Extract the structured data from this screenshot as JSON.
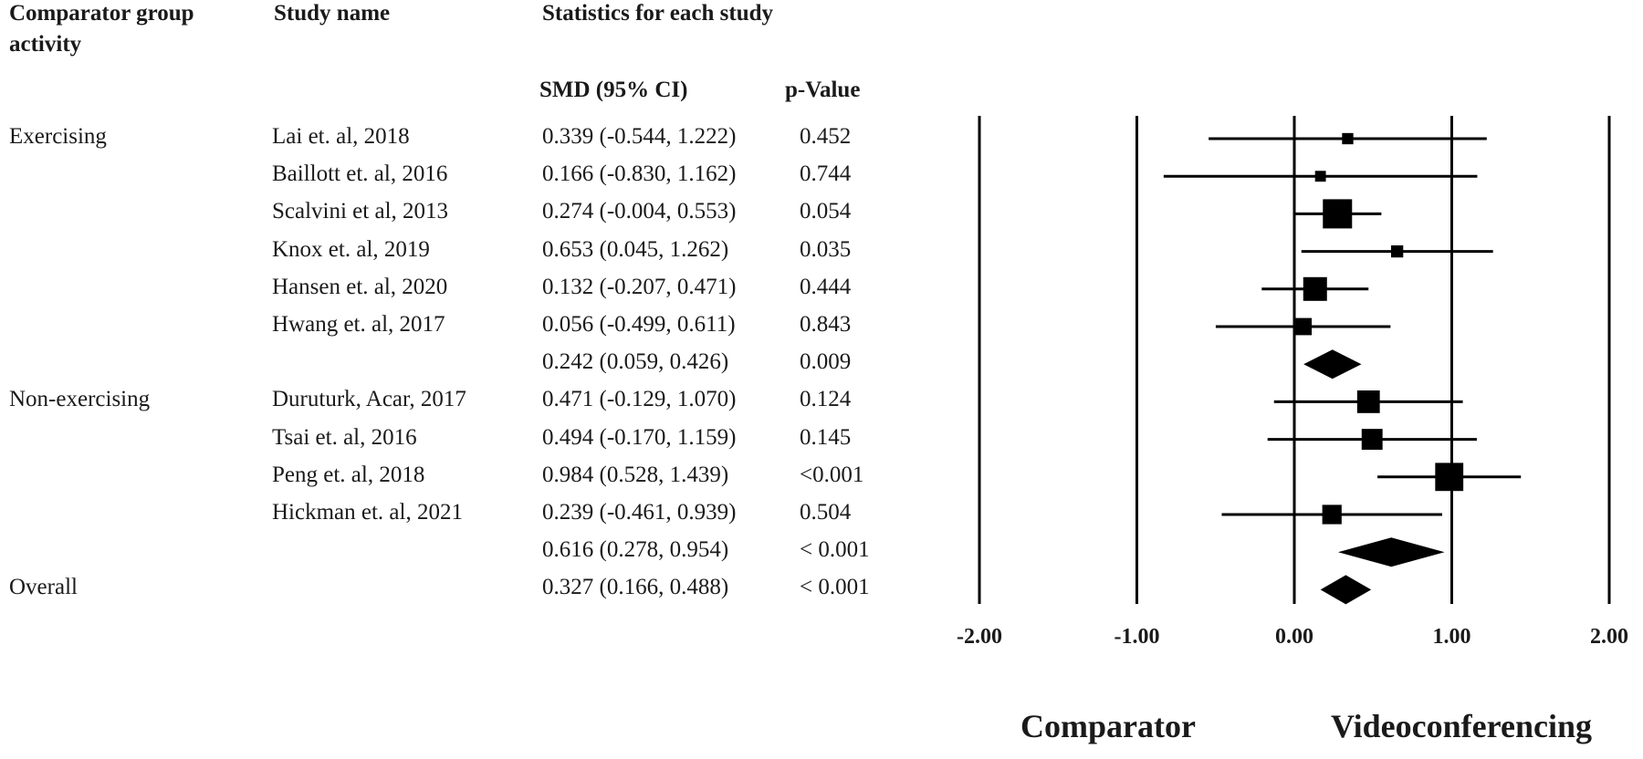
{
  "headers": {
    "group": "Comparator group activity",
    "group_line1": "Comparator group",
    "group_line2": "activity",
    "study": "Study name",
    "stats": "Statistics for each study",
    "smd": "SMD (95% CI)",
    "p": "p-Value"
  },
  "rows": [
    {
      "group": "Exercising",
      "study": "Lai et. al, 2018",
      "smd_ci": "0.339 (-0.544, 1.222)",
      "p": "0.452"
    },
    {
      "group": "",
      "study": "Baillott et. al, 2016",
      "smd_ci": "0.166 (-0.830, 1.162)",
      "p": "0.744"
    },
    {
      "group": "",
      "study": "Scalvini et al, 2013",
      "smd_ci": "0.274 (-0.004, 0.553)",
      "p": "0.054"
    },
    {
      "group": "",
      "study": "Knox et. al, 2019",
      "smd_ci": "0.653 (0.045, 1.262)",
      "p": "0.035"
    },
    {
      "group": "",
      "study": "Hansen et. al, 2020",
      "smd_ci": "0.132 (-0.207, 0.471)",
      "p": "0.444"
    },
    {
      "group": "",
      "study": "Hwang et. al, 2017",
      "smd_ci": "0.056 (-0.499, 0.611)",
      "p": "0.843"
    },
    {
      "group": "",
      "study": "",
      "smd_ci": "0.242 (0.059, 0.426)",
      "p": "0.009"
    },
    {
      "group": "Non-exercising",
      "study": "Duruturk, Acar, 2017",
      "smd_ci": "0.471 (-0.129, 1.070)",
      "p": "0.124"
    },
    {
      "group": "",
      "study": "Tsai et. al, 2016",
      "smd_ci": "0.494 (-0.170, 1.159)",
      "p": "0.145"
    },
    {
      "group": "",
      "study": "Peng et. al, 2018",
      "smd_ci": "0.984 (0.528, 1.439)",
      "p": "<0.001"
    },
    {
      "group": "",
      "study": "Hickman et. al, 2021",
      "smd_ci": "0.239 (-0.461, 0.939)",
      "p": "0.504"
    },
    {
      "group": "",
      "study": "",
      "smd_ci": "0.616 (0.278, 0.954)",
      "p": "< 0.001"
    },
    {
      "group": "Overall",
      "study": "",
      "smd_ci": "0.327 (0.166, 0.488)",
      "p": "< 0.001"
    }
  ],
  "footer": {
    "left": "Comparator",
    "right": "Videoconferencing"
  },
  "chart_data": {
    "type": "forest",
    "xlim": [
      -2.0,
      2.0
    ],
    "x_ticks": [
      "-2.00",
      "-1.00",
      "0.00",
      "1.00",
      "2.00"
    ],
    "x_tick_values": [
      -2,
      -1,
      0,
      1,
      2
    ],
    "vertical_lines_at": [
      -2,
      -1,
      0,
      1,
      2
    ],
    "study_weight_relative": [
      0.18,
      0.16,
      1.0,
      0.22,
      0.75,
      0.45,
      0,
      0.7,
      0.62,
      0.95,
      0.55,
      0,
      0
    ],
    "estimates": [
      {
        "label": "Lai et. al, 2018",
        "kind": "study",
        "smd": 0.339,
        "lower": -0.544,
        "upper": 1.222
      },
      {
        "label": "Baillott et. al, 2016",
        "kind": "study",
        "smd": 0.166,
        "lower": -0.83,
        "upper": 1.162
      },
      {
        "label": "Scalvini et al, 2013",
        "kind": "study",
        "smd": 0.274,
        "lower": -0.004,
        "upper": 0.553
      },
      {
        "label": "Knox et. al, 2019",
        "kind": "study",
        "smd": 0.653,
        "lower": 0.045,
        "upper": 1.262
      },
      {
        "label": "Hansen et. al, 2020",
        "kind": "study",
        "smd": 0.132,
        "lower": -0.207,
        "upper": 0.471
      },
      {
        "label": "Hwang et. al, 2017",
        "kind": "study",
        "smd": 0.056,
        "lower": -0.499,
        "upper": 0.611
      },
      {
        "label": "Exercising",
        "kind": "summary",
        "smd": 0.242,
        "lower": 0.059,
        "upper": 0.426
      },
      {
        "label": "Duruturk, Acar, 2017",
        "kind": "study",
        "smd": 0.471,
        "lower": -0.129,
        "upper": 1.07
      },
      {
        "label": "Tsai et. al, 2016",
        "kind": "study",
        "smd": 0.494,
        "lower": -0.17,
        "upper": 1.159
      },
      {
        "label": "Peng et. al, 2018",
        "kind": "study",
        "smd": 0.984,
        "lower": 0.528,
        "upper": 1.439
      },
      {
        "label": "Hickman et. al, 2021",
        "kind": "study",
        "smd": 0.239,
        "lower": -0.461,
        "upper": 0.939
      },
      {
        "label": "Non-exercising",
        "kind": "summary",
        "smd": 0.616,
        "lower": 0.278,
        "upper": 0.954
      },
      {
        "label": "Overall",
        "kind": "summary",
        "smd": 0.327,
        "lower": 0.166,
        "upper": 0.488
      }
    ]
  }
}
